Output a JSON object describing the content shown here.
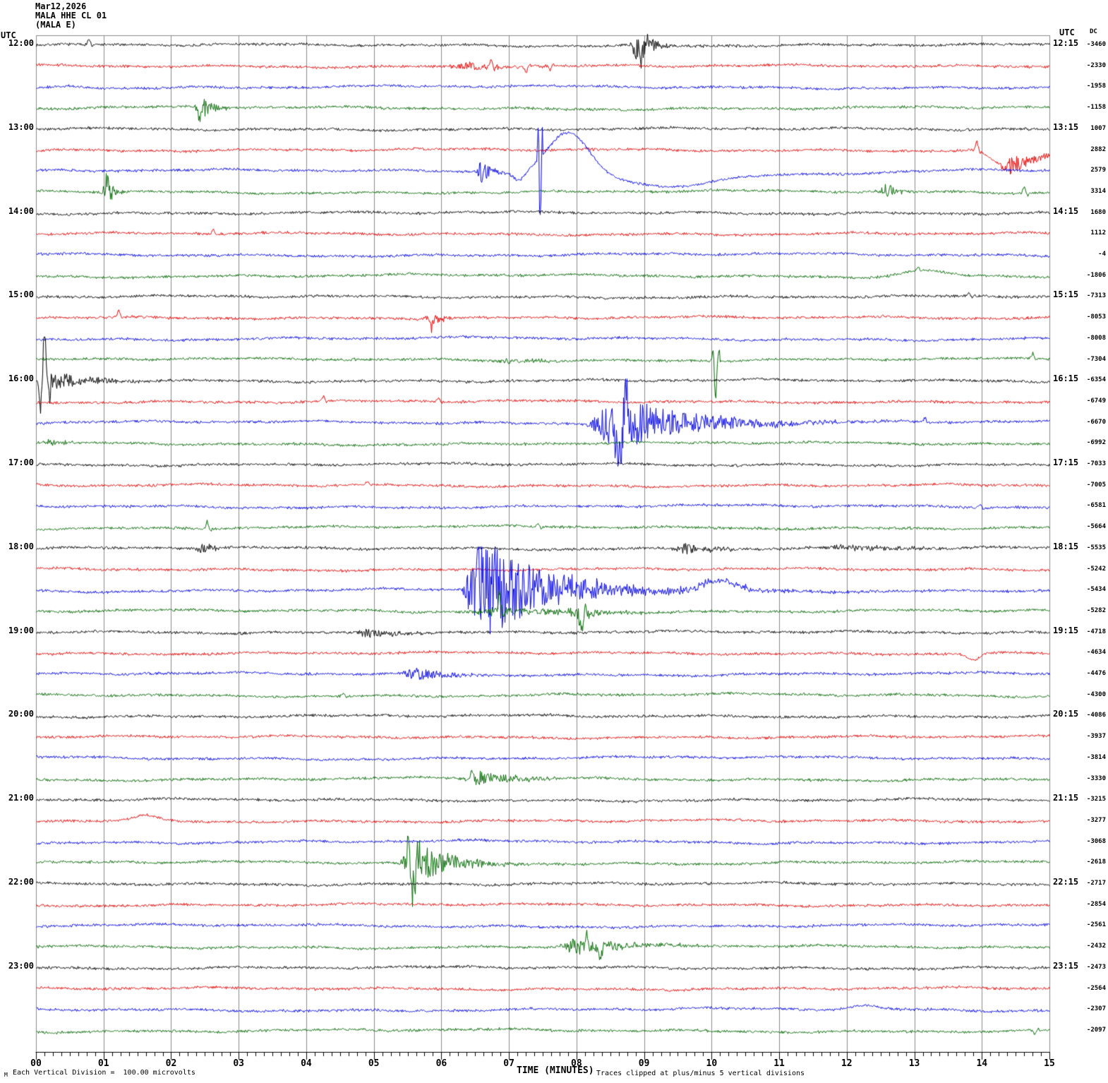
{
  "header": {
    "date": "Mar12,2026",
    "station": "MALA HHE CL 01",
    "channel": "(MALA E)"
  },
  "left_axis": {
    "title": "UTC",
    "times": [
      "12:00",
      "13:00",
      "14:00",
      "15:00",
      "16:00",
      "17:00",
      "18:00",
      "19:00",
      "20:00",
      "21:00",
      "22:00",
      "23:00"
    ]
  },
  "right_axis": {
    "title": "UTC",
    "times": [
      "12:15",
      "13:15",
      "14:15",
      "15:15",
      "16:15",
      "17:15",
      "18:15",
      "19:15",
      "20:15",
      "21:15",
      "22:15",
      "23:15"
    ],
    "dc_title": "DC",
    "dc_values": [
      "-3460",
      "-2330",
      "-1958",
      "-1158",
      "1007",
      "2882",
      "2579",
      "3314",
      "1680",
      "1112",
      "-4",
      "-1806",
      "-7313",
      "-8053",
      "-8008",
      "-7304",
      "-6354",
      "-6749",
      "-6670",
      "-6992",
      "-7033",
      "-7005",
      "-6581",
      "-5664",
      "-5535",
      "-5242",
      "-5434",
      "-5282",
      "-4718",
      "-4634",
      "-4476",
      "-4300",
      "-4086",
      "-3937",
      "-3814",
      "-3330",
      "-3215",
      "-3277",
      "-3068",
      "-2618",
      "-2717",
      "-2854",
      "-2561",
      "-2432",
      "-2473",
      "-2564",
      "-2307",
      "-2097"
    ]
  },
  "x_axis": {
    "title": "TIME (MINUTES)",
    "ticks": [
      "00",
      "01",
      "02",
      "03",
      "04",
      "05",
      "06",
      "07",
      "08",
      "09",
      "10",
      "11",
      "12",
      "13",
      "14",
      "15"
    ]
  },
  "footer": {
    "scale_note": "Each Vertical Division =  100.00 microvolts",
    "clip_note": "Traces clipped at plus/minus 5 vertical divisions",
    "corner_mark": "M"
  },
  "colors": {
    "black": "#000000",
    "red": "#e60000",
    "blue": "#0000e6",
    "green": "#006600",
    "grid": "#8a8a8a"
  },
  "chart_data": {
    "type": "line",
    "subtype": "seismogram-helicorder",
    "xlabel": "TIME (MINUTES)",
    "x_range": [
      0,
      15
    ],
    "minutes_per_line": 15,
    "trace_count": 48,
    "vertical_division_microvolts": 100.0,
    "clip_divisions": 5,
    "trace_colors_cycle": [
      "black",
      "red",
      "blue",
      "green"
    ],
    "traces": [
      {
        "start": "12:00",
        "color": "black",
        "dc": -3460,
        "events": [
          {
            "type": "spike",
            "t": 0.78,
            "amp": 9
          },
          {
            "type": "burst",
            "t": 8.82,
            "dur": 0.4,
            "amp": 24
          },
          {
            "type": "spike",
            "t": 8.95,
            "amp": -26,
            "w": 0.04
          }
        ]
      },
      {
        "start": "12:15",
        "color": "red",
        "dc": -2330,
        "events": [
          {
            "type": "burst",
            "t": 6.1,
            "dur": 1.2,
            "amp": 6
          },
          {
            "type": "spike",
            "t": 6.73,
            "amp": 12
          },
          {
            "type": "spike",
            "t": 7.25,
            "amp": -10
          },
          {
            "type": "spike",
            "t": 7.6,
            "amp": -8
          }
        ]
      },
      {
        "start": "12:30",
        "color": "blue",
        "dc": -1958,
        "events": [
          {
            "type": "bump",
            "t": 0.5,
            "w": 0.3,
            "amp": 4
          }
        ]
      },
      {
        "start": "12:45",
        "color": "green",
        "dc": -1158,
        "events": [
          {
            "type": "burst",
            "t": 2.38,
            "dur": 0.35,
            "amp": 16
          },
          {
            "type": "spike",
            "t": 2.42,
            "amp": -20,
            "w": 0.03
          }
        ]
      },
      {
        "start": "13:00",
        "color": "black",
        "dc": 1007,
        "events": []
      },
      {
        "start": "13:15",
        "color": "red",
        "dc": 2882,
        "events": [
          {
            "type": "spike",
            "t": 13.92,
            "amp": 14
          },
          {
            "type": "sag",
            "t": 13.95,
            "mid": 14.32,
            "end": 15.25,
            "amp": -26
          },
          {
            "type": "burst",
            "t": 14.3,
            "dur": 0.7,
            "amp": 13
          }
        ]
      },
      {
        "start": "13:30",
        "color": "blue",
        "dc": 2579,
        "events": [
          {
            "type": "burst",
            "t": 6.55,
            "dur": 0.25,
            "amp": 16
          },
          {
            "type": "bump",
            "t": 7.15,
            "w": 0.12,
            "amp": -13
          },
          {
            "type": "spike",
            "t": 7.43,
            "amp": 80,
            "w": 0.012
          },
          {
            "type": "spike",
            "t": 7.46,
            "amp": -150,
            "w": 0.015
          },
          {
            "type": "bump",
            "t": 7.88,
            "w": 0.42,
            "amp": 57
          },
          {
            "type": "bump",
            "t": 9.3,
            "w": 0.95,
            "amp": -19
          },
          {
            "type": "bump",
            "t": 11.2,
            "w": 1.6,
            "amp": -5
          }
        ]
      },
      {
        "start": "13:45",
        "color": "green",
        "dc": 3314,
        "events": [
          {
            "type": "burst",
            "t": 1.0,
            "dur": 0.2,
            "amp": 20
          },
          {
            "type": "spike",
            "t": 1.05,
            "amp": 24,
            "w": 0.03
          },
          {
            "type": "burst",
            "t": 12.5,
            "dur": 0.35,
            "amp": 11
          },
          {
            "type": "spike",
            "t": 14.62,
            "amp": 11
          }
        ]
      },
      {
        "start": "14:00",
        "color": "black",
        "dc": 1680,
        "events": []
      },
      {
        "start": "14:15",
        "color": "red",
        "dc": 1112,
        "events": [
          {
            "type": "spike",
            "t": 2.62,
            "amp": 8
          }
        ]
      },
      {
        "start": "14:30",
        "color": "blue",
        "dc": -4,
        "events": []
      },
      {
        "start": "14:45",
        "color": "green",
        "dc": -1806,
        "events": [
          {
            "type": "spike",
            "t": 13.05,
            "amp": 7
          },
          {
            "type": "bump",
            "t": 13.15,
            "w": 0.45,
            "amp": 9
          }
        ]
      },
      {
        "start": "15:00",
        "color": "black",
        "dc": -7313,
        "events": [
          {
            "type": "spike",
            "t": 13.8,
            "amp": 6
          }
        ]
      },
      {
        "start": "15:15",
        "color": "red",
        "dc": -8053,
        "events": [
          {
            "type": "spike",
            "t": 1.22,
            "amp": 12
          },
          {
            "type": "burst",
            "t": 5.75,
            "dur": 0.45,
            "amp": 8
          },
          {
            "type": "spike",
            "t": 5.85,
            "amp": -16,
            "w": 0.03
          }
        ]
      },
      {
        "start": "15:30",
        "color": "blue",
        "dc": -8008,
        "events": []
      },
      {
        "start": "15:45",
        "color": "green",
        "dc": -7304,
        "events": [
          {
            "type": "burst",
            "t": 6.8,
            "dur": 0.9,
            "amp": 5
          },
          {
            "type": "spike",
            "t": 10.02,
            "amp": 25,
            "w": 0.02
          },
          {
            "type": "spike",
            "t": 10.05,
            "amp": -55,
            "w": 0.025
          },
          {
            "type": "spike",
            "t": 14.75,
            "amp": 9
          }
        ]
      },
      {
        "start": "16:00",
        "color": "black",
        "dc": -6354,
        "events": [
          {
            "type": "spike",
            "t": 0.07,
            "amp": -70,
            "w": 0.03
          },
          {
            "type": "spike",
            "t": 0.11,
            "amp": 70,
            "w": 0.04
          },
          {
            "type": "burst",
            "t": 0.06,
            "dur": 1.0,
            "amp": 13
          }
        ]
      },
      {
        "start": "16:15",
        "color": "red",
        "dc": -6749,
        "events": [
          {
            "type": "spike",
            "t": 4.25,
            "amp": 8
          },
          {
            "type": "spike",
            "t": 5.95,
            "amp": 7
          }
        ]
      },
      {
        "start": "16:30",
        "color": "blue",
        "dc": -6670,
        "events": [
          {
            "type": "burst",
            "t": 8.2,
            "dur": 2.0,
            "amp": 40
          },
          {
            "type": "spike",
            "t": 8.62,
            "amp": -50,
            "w": 0.05
          },
          {
            "type": "spike",
            "t": 8.75,
            "amp": 42,
            "w": 0.04
          },
          {
            "type": "spike",
            "t": 13.15,
            "amp": 8
          }
        ]
      },
      {
        "start": "16:45",
        "color": "green",
        "dc": -6992,
        "events": [
          {
            "type": "burst",
            "t": 0.12,
            "dur": 0.5,
            "amp": 5
          }
        ]
      },
      {
        "start": "17:00",
        "color": "black",
        "dc": -7033,
        "events": []
      },
      {
        "start": "17:15",
        "color": "red",
        "dc": -7005,
        "events": [
          {
            "type": "spike",
            "t": 4.9,
            "amp": 6
          }
        ]
      },
      {
        "start": "17:30",
        "color": "blue",
        "dc": -6581,
        "events": [
          {
            "type": "spike",
            "t": 13.97,
            "amp": 8
          }
        ]
      },
      {
        "start": "17:45",
        "color": "green",
        "dc": -5664,
        "events": [
          {
            "type": "spike",
            "t": 2.53,
            "amp": 13
          },
          {
            "type": "spike",
            "t": 7.42,
            "amp": 7
          }
        ]
      },
      {
        "start": "18:00",
        "color": "black",
        "dc": -5535,
        "events": [
          {
            "type": "burst",
            "t": 2.4,
            "dur": 0.35,
            "amp": 8
          },
          {
            "type": "burst",
            "t": 9.45,
            "dur": 0.8,
            "amp": 9
          },
          {
            "type": "burst",
            "t": 11.6,
            "dur": 1.6,
            "amp": 5
          }
        ]
      },
      {
        "start": "18:15",
        "color": "red",
        "dc": -5242,
        "events": []
      },
      {
        "start": "18:30",
        "color": "blue",
        "dc": -5434,
        "events": [
          {
            "type": "burst",
            "t": 6.35,
            "dur": 1.3,
            "amp": 90
          },
          {
            "type": "burst",
            "t": 7.6,
            "dur": 2.0,
            "amp": 13
          },
          {
            "type": "burst",
            "t": 9.2,
            "dur": 3.0,
            "amp": 4
          },
          {
            "type": "bump",
            "t": 10.1,
            "w": 0.35,
            "amp": 13
          }
        ]
      },
      {
        "start": "18:45",
        "color": "green",
        "dc": -5282,
        "events": [
          {
            "type": "burst",
            "t": 6.4,
            "dur": 2.2,
            "amp": 7
          },
          {
            "type": "spike",
            "t": 6.85,
            "amp": 25,
            "w": 0.03
          },
          {
            "type": "burst",
            "t": 7.9,
            "dur": 0.6,
            "amp": 11
          },
          {
            "type": "spike",
            "t": 8.07,
            "amp": -32,
            "w": 0.035
          }
        ]
      },
      {
        "start": "19:00",
        "color": "black",
        "dc": -4718,
        "events": [
          {
            "type": "burst",
            "t": 4.75,
            "dur": 0.9,
            "amp": 7
          }
        ]
      },
      {
        "start": "19:15",
        "color": "red",
        "dc": -4634,
        "events": [
          {
            "type": "bump",
            "t": 13.88,
            "w": 0.12,
            "amp": -9
          }
        ]
      },
      {
        "start": "19:30",
        "color": "blue",
        "dc": -4476,
        "events": [
          {
            "type": "burst",
            "t": 5.45,
            "dur": 0.7,
            "amp": 13
          }
        ]
      },
      {
        "start": "19:45",
        "color": "green",
        "dc": -4300,
        "events": [
          {
            "type": "spike",
            "t": 4.55,
            "amp": 6
          }
        ]
      },
      {
        "start": "20:00",
        "color": "black",
        "dc": -4086,
        "events": []
      },
      {
        "start": "20:15",
        "color": "red",
        "dc": -3937,
        "events": []
      },
      {
        "start": "20:30",
        "color": "blue",
        "dc": -3814,
        "events": []
      },
      {
        "start": "20:45",
        "color": "green",
        "dc": -3330,
        "events": [
          {
            "type": "burst",
            "t": 6.35,
            "dur": 1.3,
            "amp": 10
          },
          {
            "type": "spike",
            "t": 6.45,
            "amp": 15,
            "w": 0.03
          }
        ]
      },
      {
        "start": "21:00",
        "color": "black",
        "dc": -3215,
        "events": []
      },
      {
        "start": "21:15",
        "color": "red",
        "dc": -3277,
        "events": [
          {
            "type": "bump",
            "t": 1.62,
            "w": 0.25,
            "amp": 7
          }
        ]
      },
      {
        "start": "21:30",
        "color": "blue",
        "dc": -3068,
        "events": []
      },
      {
        "start": "21:45",
        "color": "green",
        "dc": -2618,
        "events": [
          {
            "type": "burst",
            "t": 5.42,
            "dur": 0.9,
            "amp": 36
          },
          {
            "type": "spike",
            "t": 5.5,
            "amp": 30,
            "w": 0.03
          },
          {
            "type": "spike",
            "t": 5.57,
            "amp": -52,
            "w": 0.04
          }
        ]
      },
      {
        "start": "22:00",
        "color": "black",
        "dc": -2717,
        "events": []
      },
      {
        "start": "22:15",
        "color": "red",
        "dc": -2854,
        "events": []
      },
      {
        "start": "22:30",
        "color": "blue",
        "dc": -2561,
        "events": []
      },
      {
        "start": "22:45",
        "color": "green",
        "dc": -2432,
        "events": [
          {
            "type": "burst",
            "t": 7.75,
            "dur": 1.4,
            "amp": 12
          },
          {
            "type": "spike",
            "t": 8.15,
            "amp": 16,
            "w": 0.03
          },
          {
            "type": "spike",
            "t": 8.35,
            "amp": -18,
            "w": 0.04
          }
        ]
      },
      {
        "start": "23:00",
        "color": "black",
        "dc": -2473,
        "events": []
      },
      {
        "start": "23:15",
        "color": "red",
        "dc": -2564,
        "events": []
      },
      {
        "start": "23:30",
        "color": "blue",
        "dc": -2307,
        "events": [
          {
            "type": "bump",
            "t": 12.25,
            "w": 0.3,
            "amp": 5
          }
        ]
      },
      {
        "start": "23:45",
        "color": "green",
        "dc": -2097,
        "events": [
          {
            "type": "spike",
            "t": 14.78,
            "amp": -9
          }
        ]
      }
    ]
  }
}
